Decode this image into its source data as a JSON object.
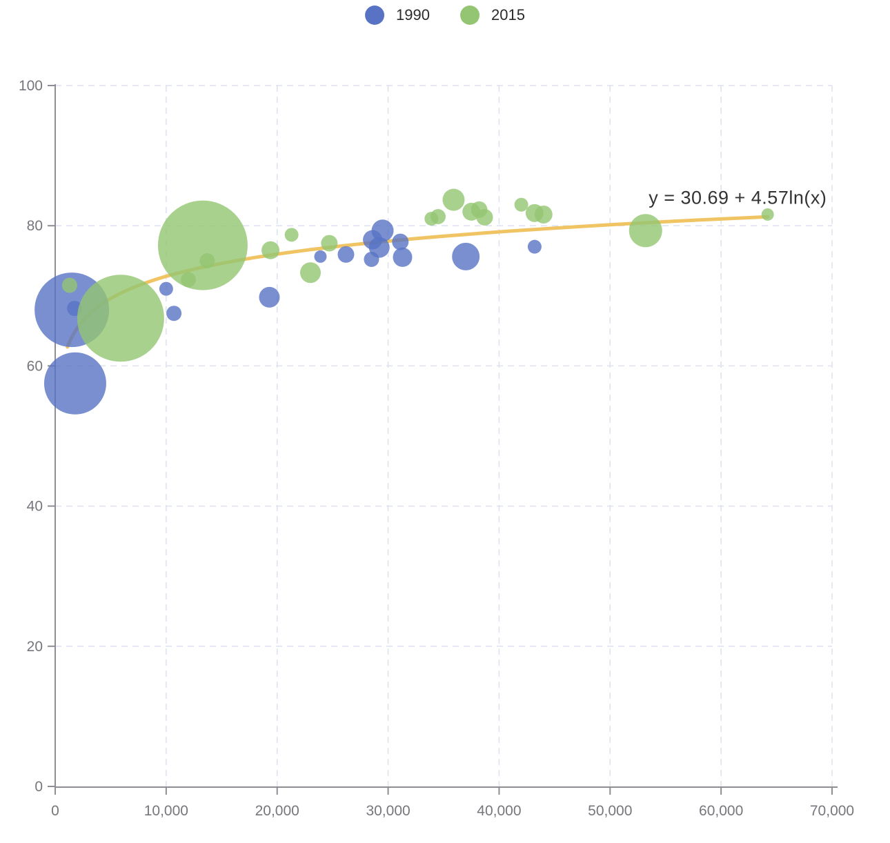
{
  "legend": {
    "items": [
      {
        "label": "1990",
        "color": "#5873c4"
      },
      {
        "label": "2015",
        "color": "#93c572"
      }
    ]
  },
  "chart_data": {
    "type": "scatter",
    "subtype": "bubble",
    "title": "",
    "xlabel": "",
    "ylabel": "",
    "grid": true,
    "legend_position": "top-center",
    "x_axis": {
      "min": 0,
      "max": 70000,
      "ticks": [
        0,
        10000,
        20000,
        30000,
        40000,
        50000,
        60000,
        70000
      ],
      "tick_labels": [
        "0",
        "10,000",
        "20,000",
        "30,000",
        "40,000",
        "50,000",
        "60,000",
        "70,000"
      ]
    },
    "y_axis": {
      "min": 0,
      "max": 100,
      "ticks": [
        0,
        20,
        40,
        60,
        80,
        100
      ],
      "tick_labels": [
        "0",
        "20",
        "40",
        "60",
        "80",
        "100"
      ]
    },
    "series": [
      {
        "name": "1990",
        "color": "#5873c4",
        "fill_opacity": 0.8,
        "points": [
          {
            "x": 1500,
            "y": 68.0,
            "r": 54
          },
          {
            "x": 1800,
            "y": 57.5,
            "r": 45
          },
          {
            "x": 1750,
            "y": 68.2,
            "r": 11
          },
          {
            "x": 10000,
            "y": 71.0,
            "r": 10
          },
          {
            "x": 10700,
            "y": 67.5,
            "r": 11
          },
          {
            "x": 19300,
            "y": 69.8,
            "r": 15
          },
          {
            "x": 23900,
            "y": 75.6,
            "r": 9
          },
          {
            "x": 26200,
            "y": 75.9,
            "r": 12
          },
          {
            "x": 28500,
            "y": 75.2,
            "r": 11
          },
          {
            "x": 28600,
            "y": 78.0,
            "r": 14
          },
          {
            "x": 29500,
            "y": 79.3,
            "r": 16
          },
          {
            "x": 29200,
            "y": 76.9,
            "r": 15
          },
          {
            "x": 31100,
            "y": 77.7,
            "r": 12
          },
          {
            "x": 31300,
            "y": 75.5,
            "r": 14
          },
          {
            "x": 37000,
            "y": 75.6,
            "r": 20
          },
          {
            "x": 43200,
            "y": 77.0,
            "r": 10
          }
        ]
      },
      {
        "name": "2015",
        "color": "#93c572",
        "fill_opacity": 0.8,
        "points": [
          {
            "x": 1300,
            "y": 71.5,
            "r": 11
          },
          {
            "x": 5900,
            "y": 66.8,
            "r": 63
          },
          {
            "x": 12000,
            "y": 72.3,
            "r": 11
          },
          {
            "x": 13300,
            "y": 77.2,
            "r": 65
          },
          {
            "x": 13700,
            "y": 75.0,
            "r": 11
          },
          {
            "x": 19400,
            "y": 76.5,
            "r": 13
          },
          {
            "x": 21300,
            "y": 78.7,
            "r": 10
          },
          {
            "x": 23000,
            "y": 73.3,
            "r": 15
          },
          {
            "x": 24700,
            "y": 77.5,
            "r": 12
          },
          {
            "x": 33900,
            "y": 81.0,
            "r": 10
          },
          {
            "x": 34500,
            "y": 81.3,
            "r": 11
          },
          {
            "x": 35900,
            "y": 83.7,
            "r": 16
          },
          {
            "x": 37500,
            "y": 82.0,
            "r": 13
          },
          {
            "x": 38200,
            "y": 82.3,
            "r": 12
          },
          {
            "x": 38700,
            "y": 81.2,
            "r": 12
          },
          {
            "x": 42000,
            "y": 83.0,
            "r": 10
          },
          {
            "x": 43200,
            "y": 81.8,
            "r": 13
          },
          {
            "x": 44000,
            "y": 81.6,
            "r": 13
          },
          {
            "x": 53200,
            "y": 79.3,
            "r": 24
          },
          {
            "x": 64200,
            "y": 81.6,
            "r": 9
          }
        ]
      }
    ],
    "trend_line": {
      "label": "y = 30.69 + 4.57ln(x)",
      "intercept": 30.69,
      "coefficient": 4.57,
      "color": "#f0c463",
      "width": 5,
      "x_start": 1100,
      "x_end": 64200,
      "annotation_anchor": {
        "x": 61500,
        "y": 84
      }
    }
  }
}
